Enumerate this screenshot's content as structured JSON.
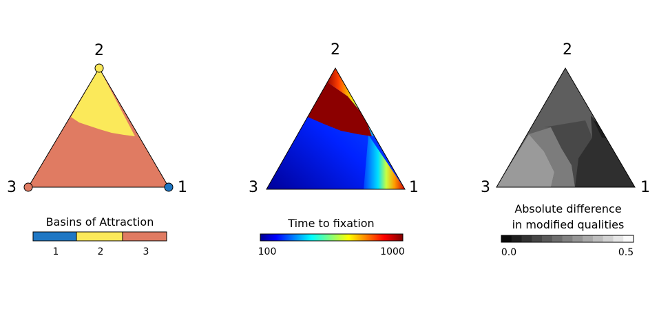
{
  "chart_data": [
    {
      "type": "ternary",
      "subtype": "categorical-region-map",
      "vertex_labels": {
        "right": "1",
        "top": "2",
        "left": "3"
      },
      "vertex_markers": [
        {
          "vertex": "1",
          "color": "#1f77c4"
        },
        {
          "vertex": "2",
          "color": "#fbe95a"
        },
        {
          "vertex": "3",
          "color": "#e07b62"
        }
      ],
      "regions": [
        {
          "basin": "2",
          "color": "#fbe95a",
          "description": "upper corner near vertex 2"
        },
        {
          "basin": "3",
          "color": "#e07b62",
          "description": "lower region"
        }
      ],
      "legend": {
        "title": "Basins of Attraction",
        "categories": [
          "1",
          "2",
          "3"
        ],
        "colors": [
          "#1f77c4",
          "#fbe95a",
          "#e07b62"
        ]
      }
    },
    {
      "type": "ternary",
      "subtype": "heatmap",
      "vertex_labels": {
        "right": "1",
        "top": "2",
        "left": "3"
      },
      "colorbar": {
        "title": "Time to fixation",
        "min_label": "100",
        "max_label": "1000",
        "range": [
          100,
          1000
        ],
        "colormap": [
          "#00008f",
          "#0000ff",
          "#00ffff",
          "#ffff00",
          "#ff0000",
          "#800000"
        ]
      }
    },
    {
      "type": "ternary",
      "subtype": "grayscale-heatmap",
      "vertex_labels": {
        "right": "1",
        "top": "2",
        "left": "3"
      },
      "colorbar": {
        "title_lines": [
          "Absolute difference",
          "in modified qualities"
        ],
        "min_label": "0.0",
        "max_label": "0.5",
        "range": [
          0.0,
          0.5
        ],
        "steps": 13
      }
    }
  ]
}
